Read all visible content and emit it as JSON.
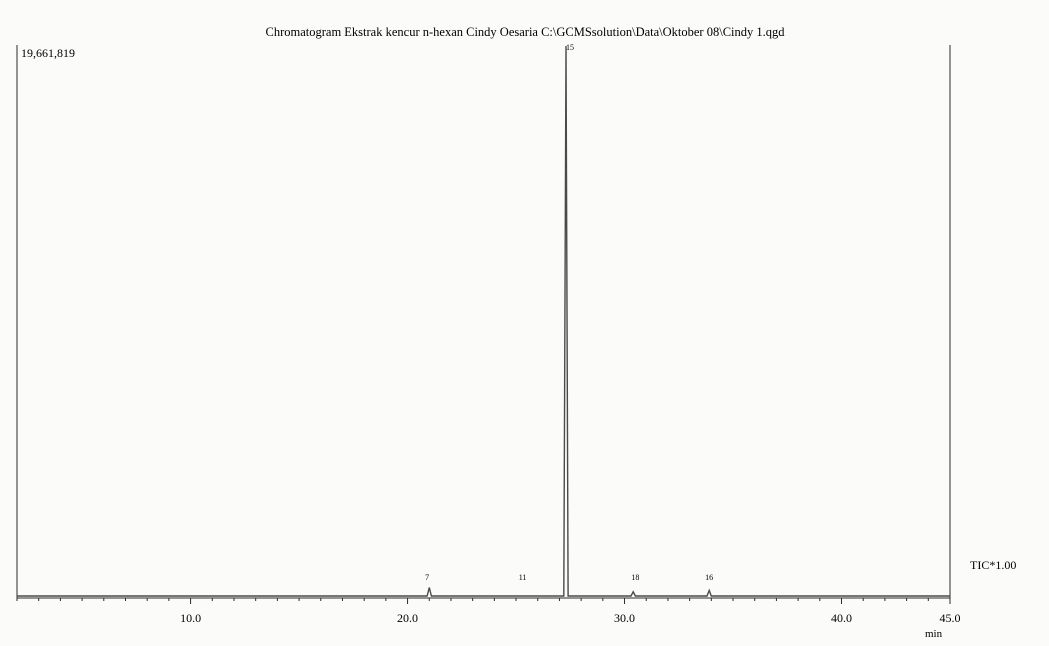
{
  "chart_data": {
    "type": "line",
    "title": "Chromatogram Ekstrak kencur n-hexan Cindy Oesaria C:\\GCMSsolution\\Data\\Oktober 08\\Cindy 1.qgd",
    "y_max_label": "19,661,819",
    "trace_label": "TIC*1.00",
    "xlabel": "min",
    "xlim": [
      2.0,
      45.0
    ],
    "ylim": [
      0,
      19661819
    ],
    "x_tick_labels": [
      "10.0",
      "20.0",
      "30.0",
      "40.0",
      "45.0"
    ],
    "x_ticks": [
      10.0,
      20.0,
      30.0,
      40.0,
      45.0
    ],
    "series": [
      {
        "points": [
          [
            2.0,
            0
          ],
          [
            20.9,
            0
          ],
          [
            21.0,
            300000
          ],
          [
            21.1,
            0
          ],
          [
            27.2,
            0
          ],
          [
            27.3,
            19661819
          ],
          [
            27.4,
            0
          ],
          [
            30.3,
            0
          ],
          [
            30.4,
            150000
          ],
          [
            30.5,
            0
          ],
          [
            33.8,
            0
          ],
          [
            33.9,
            200000
          ],
          [
            34.0,
            0
          ],
          [
            45.0,
            0
          ]
        ]
      }
    ],
    "peaks": [
      {
        "x": 20.9,
        "label": "7"
      },
      {
        "x": 25.3,
        "label": "11"
      },
      {
        "x": 27.3,
        "label": "15"
      },
      {
        "x": 30.5,
        "label": "18"
      },
      {
        "x": 33.9,
        "label": "16"
      }
    ]
  },
  "colors": {
    "background": "#fbfbf9",
    "axis": "#2b2b2b",
    "trace": "#4a4a4a"
  }
}
